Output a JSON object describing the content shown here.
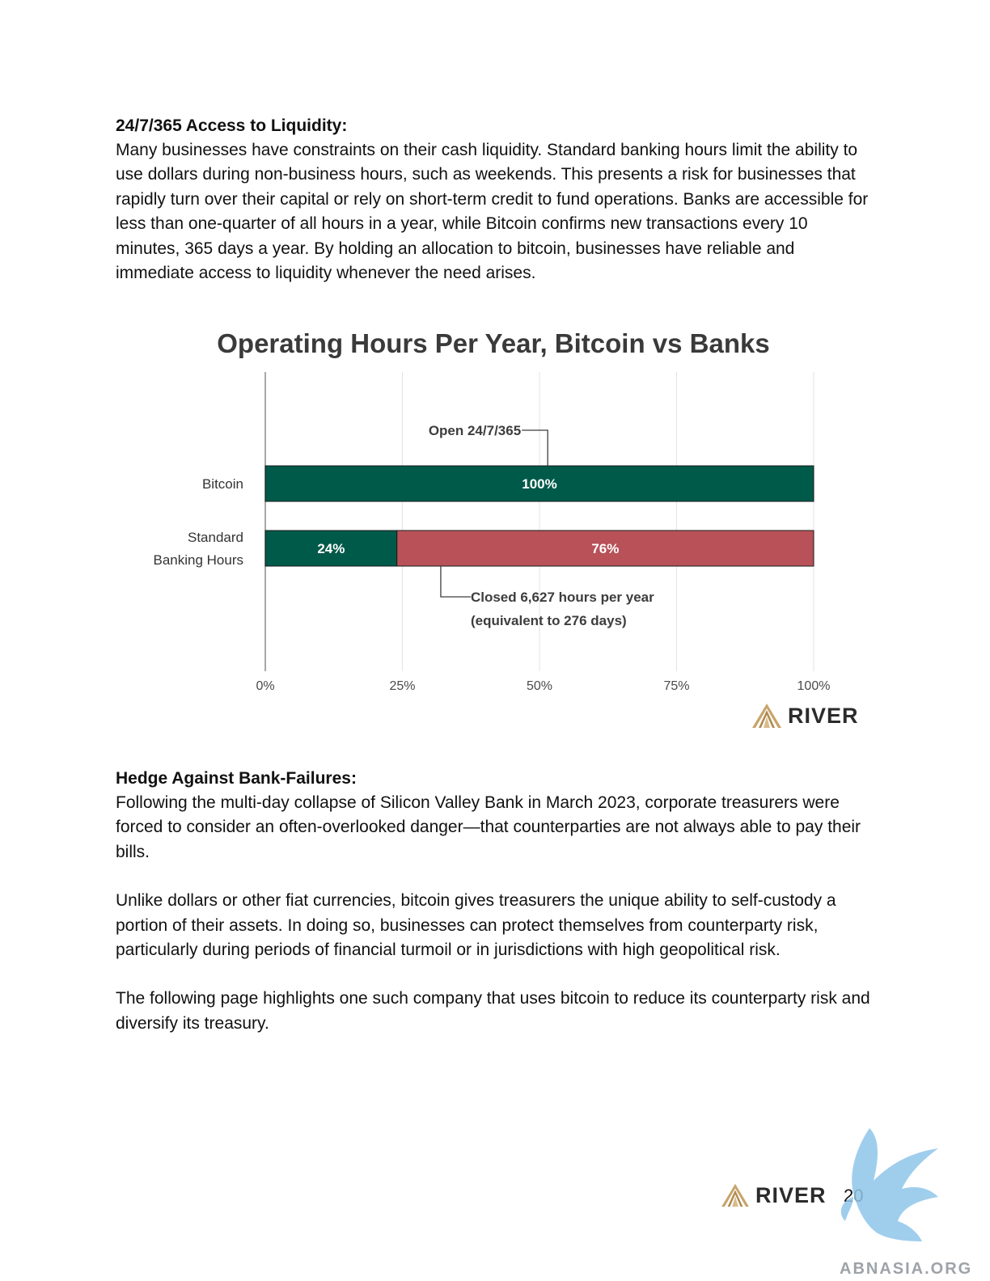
{
  "section1": {
    "heading": "24/7/365 Access to Liquidity:",
    "body": "Many businesses have constraints on their cash liquidity. Standard banking hours limit the ability to use dollars during non-business hours, such as weekends. This presents a risk for businesses that rapidly turn over their capital or rely on short-term credit to fund operations. Banks are accessible for less than one-quarter of all hours in a year, while Bitcoin confirms new transactions every 10 minutes, 365 days a year. By holding an allocation to bitcoin, businesses have reliable and immediate access to liquidity whenever the need arises."
  },
  "chart_data": {
    "type": "bar",
    "orientation": "horizontal",
    "stacked": true,
    "title": "Operating Hours Per Year, Bitcoin vs Banks",
    "categories": [
      "Bitcoin",
      "Standard Banking Hours"
    ],
    "category_lines": [
      [
        "Bitcoin"
      ],
      [
        "Standard",
        "Banking Hours"
      ]
    ],
    "series": [
      {
        "values": [
          100,
          24
        ],
        "color": "#005a49",
        "labels": [
          "100%",
          "24%"
        ]
      },
      {
        "values": [
          0,
          76
        ],
        "color": "#b85158",
        "labels": [
          "",
          "76%"
        ]
      }
    ],
    "xlim": [
      0,
      100
    ],
    "xticks": [
      0,
      25,
      50,
      75,
      100
    ],
    "xtick_labels": [
      "0%",
      "25%",
      "50%",
      "75%",
      "100%"
    ],
    "grid": true,
    "annotations": {
      "open": "Open 24/7/365",
      "closed_line1": "Closed 6,627 hours per year",
      "closed_line2": "(equivalent to 276 days)"
    }
  },
  "chart_logo": {
    "text": "RIVER",
    "color": "#c8a46b"
  },
  "section2": {
    "heading": "Hedge Against Bank-Failures:",
    "paragraphs": [
      "Following the multi-day collapse of Silicon Valley Bank in March 2023, corporate treasurers were forced to consider an often-overlooked danger—that counterparties are not always able to pay their bills.",
      "Unlike dollars or other fiat currencies, bitcoin gives treasurers the unique ability to self-custody a portion of their assets. In doing so, businesses can protect themselves from counterparty risk, particularly during periods of financial turmoil or in jurisdictions with high geopolitical risk.",
      "The following page highlights one such company that uses bitcoin to reduce its counterparty risk and diversify its treasury."
    ]
  },
  "footer": {
    "logo_text": "RIVER",
    "page_number": "20"
  },
  "watermark": {
    "text": "ABNASIA.ORG"
  }
}
